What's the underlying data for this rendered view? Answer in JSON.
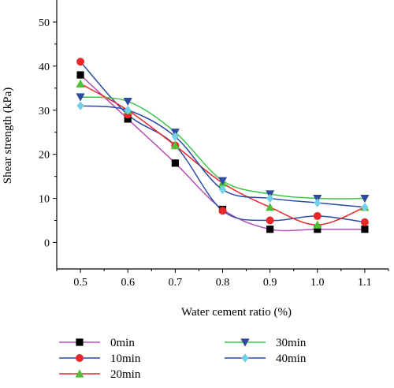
{
  "chart_data": {
    "type": "scatter",
    "xlabel": "Water cement ratio (%)",
    "ylabel": "Shear strength (kPa)",
    "xlim": [
      0.45,
      1.15
    ],
    "ylim": [
      -6,
      55
    ],
    "x": [
      0.5,
      0.6,
      0.7,
      0.8,
      0.9,
      1.0,
      1.1
    ],
    "x_tick_labels": [
      "0.5",
      "0.6",
      "0.7",
      "0.8",
      "0.9",
      "1.0",
      "1.1"
    ],
    "y_ticks": [
      0,
      10,
      20,
      30,
      40,
      50
    ],
    "y_tick_labels": [
      "0",
      "10",
      "20",
      "30",
      "40",
      "50"
    ],
    "legend_position": "bottom",
    "series": [
      {
        "name": "0min",
        "marker": "square",
        "marker_color": "#000000",
        "line_color": "#b24fb8",
        "values": [
          38,
          28,
          18,
          7.5,
          3,
          3,
          3
        ]
      },
      {
        "name": "10min",
        "marker": "circle",
        "marker_color": "#e8282b",
        "line_color": "#2c4aa6",
        "values": [
          41,
          29,
          22,
          7.2,
          5,
          6,
          4.6
        ]
      },
      {
        "name": "20min",
        "marker": "triangle-up",
        "marker_color": "#4fbf3a",
        "line_color": "#e8282b",
        "values": [
          36,
          30,
          22,
          13.5,
          8,
          4,
          8
        ]
      },
      {
        "name": "30min",
        "marker": "triangle-down",
        "marker_color": "#2e4b9e",
        "line_color": "#3cc44a",
        "values": [
          33,
          32,
          25,
          14,
          11,
          10,
          10
        ]
      },
      {
        "name": "40min",
        "marker": "diamond",
        "marker_color": "#6fd0e8",
        "line_color": "#2a49a8",
        "values": [
          31,
          30,
          24,
          12,
          10,
          9,
          8
        ]
      }
    ]
  }
}
